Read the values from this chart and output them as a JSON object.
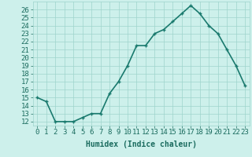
{
  "x": [
    0,
    1,
    2,
    3,
    4,
    5,
    6,
    7,
    8,
    9,
    10,
    11,
    12,
    13,
    14,
    15,
    16,
    17,
    18,
    19,
    20,
    21,
    22,
    23
  ],
  "y": [
    15,
    14.5,
    12,
    12,
    12,
    12.5,
    13,
    13,
    15.5,
    17,
    19,
    21.5,
    21.5,
    23,
    23.5,
    24.5,
    25.5,
    26.5,
    25.5,
    24,
    23,
    21,
    19,
    16.5
  ],
  "line_color": "#1a7a6e",
  "marker_color": "#1a7a6e",
  "bg_color": "#cdf0eb",
  "grid_color": "#9ed4cc",
  "xlabel": "Humidex (Indice chaleur)",
  "ylabel_ticks": [
    12,
    13,
    14,
    15,
    16,
    17,
    18,
    19,
    20,
    21,
    22,
    23,
    24,
    25,
    26
  ],
  "ylim": [
    11.5,
    27
  ],
  "xlim": [
    -0.5,
    23.5
  ],
  "label_color": "#1a6b5e",
  "xlabel_fontsize": 7,
  "tick_fontsize": 6.5,
  "linewidth": 1.2,
  "markersize": 3.0
}
